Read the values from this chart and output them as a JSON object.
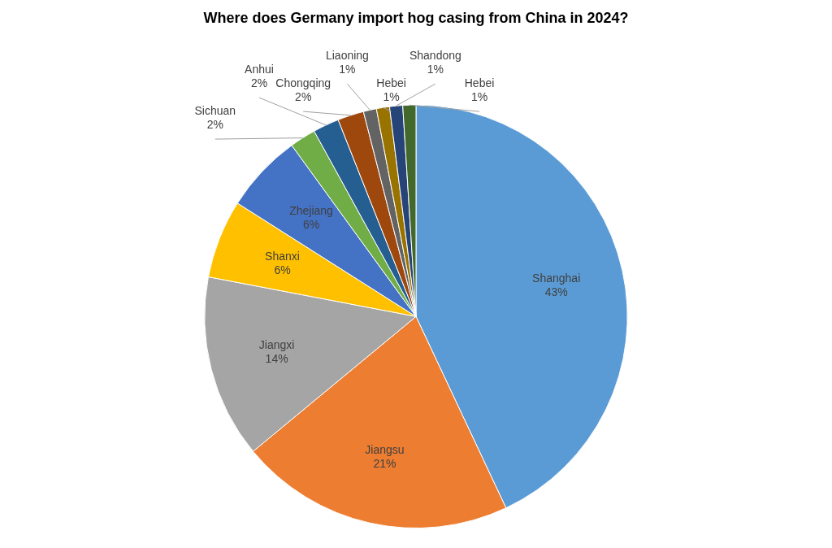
{
  "chart_data": {
    "type": "pie",
    "title": "Where does Germany import hog casing from China in 2024?",
    "categories": [
      "Shanghai",
      "Jiangsu",
      "Jiangxi",
      "Shanxi",
      "Zhejiang",
      "Sichuan",
      "Anhui",
      "Chongqing",
      "Liaoning",
      "Hebei",
      "Shandong",
      "Hebei"
    ],
    "values": [
      43,
      21,
      14,
      6,
      6,
      2,
      2,
      2,
      1,
      1,
      1,
      1
    ],
    "value_labels": [
      "43%",
      "21%",
      "14%",
      "6%",
      "6%",
      "2%",
      "2%",
      "2%",
      "1%",
      "1%",
      "1%",
      "1%"
    ],
    "colors": [
      "#5b9bd5",
      "#ed7d31",
      "#a5a5a5",
      "#ffc000",
      "#4472c4",
      "#70ad47",
      "#255e91",
      "#9e480e",
      "#636363",
      "#997300",
      "#264478",
      "#43682b"
    ],
    "legend": false
  }
}
